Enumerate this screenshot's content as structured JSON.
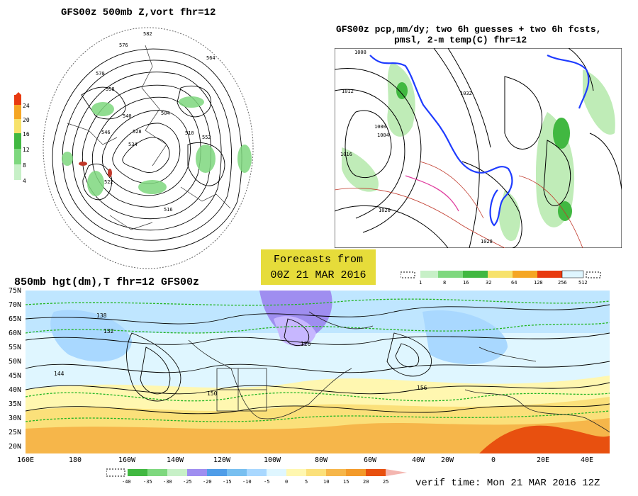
{
  "titles": {
    "panel_500mb": "GFS00z  500mb Z,vort    fhr=12",
    "panel_precip_line1": "GFS00z pcp,mm/dy; two 6h guesses + two 6h fcsts,",
    "panel_precip_line2": "pmsl, 2-m temp(C)  fhr=12",
    "panel_850mb": "850mb hgt(dm),T  fhr=12 GFS00z"
  },
  "forecast_box": {
    "line1": "Forecasts from",
    "line2": "00Z 21 MAR 2016"
  },
  "verif_time": "verif time: Mon 21 MAR 2016 12Z",
  "colorbar_vort": {
    "labels": [
      "24",
      "20",
      "16",
      "12",
      "8",
      "4"
    ]
  },
  "colorbar_precip": {
    "labels": [
      "1",
      "8",
      "16",
      "32",
      "64",
      "128",
      "256",
      "512"
    ]
  },
  "colorbar_temp": {
    "labels": [
      "-40",
      "-35",
      "-30",
      "-25",
      "-20",
      "-15",
      "-10",
      "-5",
      "0",
      "5",
      "10",
      "15",
      "20",
      "25"
    ]
  },
  "lat_labels": [
    "75N",
    "70N",
    "65N",
    "60N",
    "55N",
    "50N",
    "45N",
    "40N",
    "35N",
    "30N",
    "25N",
    "20N"
  ],
  "lon_labels": [
    "160E",
    "180",
    "160W",
    "140W",
    "120W",
    "100W",
    "80W",
    "60W",
    "40W",
    "20W",
    "0",
    "20E",
    "40E"
  ],
  "polar_contour_labels": [
    "582",
    "576",
    "570",
    "564",
    "558",
    "552",
    "546",
    "540",
    "534",
    "528",
    "522",
    "516",
    "510",
    "504"
  ],
  "precip_pressure_labels": [
    "1008",
    "1012",
    "1000",
    "1004",
    "1016",
    "1020",
    "1028",
    "1032"
  ],
  "hgt_labels": [
    "138",
    "132",
    "144",
    "126",
    "150",
    "156"
  ]
}
